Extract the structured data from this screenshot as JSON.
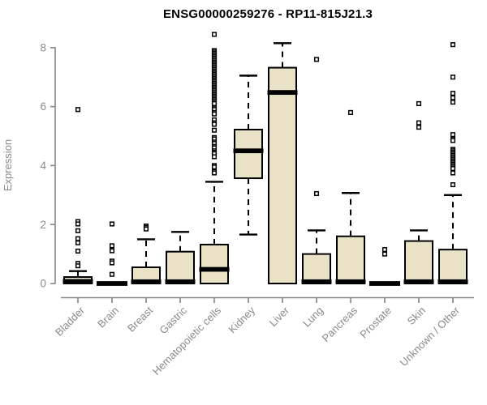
{
  "title": "ENSG00000259276 - RP11-815J21.3",
  "chart_data": {
    "type": "boxplot",
    "title": "ENSG00000259276 - RP11-815J21.3",
    "xlabel": "",
    "ylabel": "Expression",
    "ylim": [
      0,
      8
    ],
    "yticks": [
      0,
      2,
      4,
      6,
      8
    ],
    "grid": false,
    "legend": "none",
    "colors": {
      "box_fill": "#EAE2C6",
      "box_stroke": "#000000",
      "median": "#000000",
      "whisker": "#000000",
      "axis": "#878787",
      "tick_label": "#8A8A8A",
      "title": "#000000",
      "background": "#FFFFFF"
    },
    "categories": [
      "Bladder",
      "Brain",
      "Breast",
      "Gastric",
      "Hematopoietic cells",
      "Kidney",
      "Liver",
      "Lung",
      "Pancreas",
      "Prostate",
      "Skin",
      "Unknown / Other"
    ],
    "series": [
      {
        "label": "Bladder",
        "whisker_low": 0,
        "q1": 0,
        "median": 0.07,
        "q3": 0.22,
        "whisker_high": 0.42,
        "outliers": [
          5.9,
          2.1,
          2.02,
          1.79,
          1.52,
          1.38,
          1.1,
          0.68,
          0.6
        ]
      },
      {
        "label": "Brain",
        "whisker_low": 0,
        "q1": 0,
        "median": 0,
        "q3": 0,
        "whisker_high": 0,
        "outliers": [
          2.02,
          1.28,
          1.11,
          0.76,
          0.7,
          0.31
        ]
      },
      {
        "label": "Breast",
        "whisker_low": 0,
        "q1": 0,
        "median": 0.06,
        "q3": 0.55,
        "whisker_high": 1.5,
        "outliers": [
          1.95,
          1.9,
          1.85
        ]
      },
      {
        "label": "Gastric",
        "whisker_low": 0,
        "q1": 0,
        "median": 0.06,
        "q3": 1.08,
        "whisker_high": 1.75,
        "outliers": []
      },
      {
        "label": "Hematopoietic cells",
        "whisker_low": 0,
        "q1": 0,
        "median": 0.48,
        "q3": 1.32,
        "whisker_high": 3.45,
        "outliers": [
          8.45,
          7.9,
          7.85,
          7.8,
          7.75,
          7.7,
          7.65,
          7.6,
          7.55,
          7.5,
          7.45,
          7.4,
          7.35,
          7.3,
          7.25,
          7.2,
          7.15,
          7.1,
          7.05,
          7.0,
          6.95,
          6.9,
          6.85,
          6.8,
          6.75,
          6.7,
          6.65,
          6.6,
          6.55,
          6.5,
          6.45,
          6.4,
          6.35,
          6.3,
          6.25,
          6.2,
          6.15,
          6.1,
          5.95,
          5.9,
          5.8,
          5.75,
          5.55,
          5.45,
          5.4,
          5.2,
          4.95,
          4.9,
          4.8,
          4.75,
          4.65,
          4.6,
          4.5,
          4.45,
          4.4,
          4.3,
          4.0,
          3.95,
          3.8,
          3.75
        ]
      },
      {
        "label": "Kidney",
        "whisker_low": 1.66,
        "q1": 3.57,
        "median": 4.5,
        "q3": 5.22,
        "whisker_high": 7.05,
        "outliers": []
      },
      {
        "label": "Liver",
        "whisker_low": 0,
        "q1": 0,
        "median": 6.48,
        "q3": 7.32,
        "whisker_high": 8.15,
        "outliers": []
      },
      {
        "label": "Lung",
        "whisker_low": 0,
        "q1": 0,
        "median": 0.06,
        "q3": 1.0,
        "whisker_high": 1.8,
        "outliers": [
          7.6,
          3.05
        ]
      },
      {
        "label": "Pancreas",
        "whisker_low": 0,
        "q1": 0,
        "median": 0.06,
        "q3": 1.6,
        "whisker_high": 3.07,
        "outliers": [
          5.8
        ]
      },
      {
        "label": "Prostate",
        "whisker_low": 0,
        "q1": 0,
        "median": 0,
        "q3": 0,
        "whisker_high": 0,
        "outliers": [
          1.15,
          1.0
        ]
      },
      {
        "label": "Skin",
        "whisker_low": 0,
        "q1": 0,
        "median": 0.06,
        "q3": 1.44,
        "whisker_high": 1.8,
        "outliers": [
          6.1,
          5.45,
          5.3
        ]
      },
      {
        "label": "Unknown / Other",
        "whisker_low": 0,
        "q1": 0,
        "median": 0.06,
        "q3": 1.15,
        "whisker_high": 3.0,
        "outliers": [
          8.1,
          7.0,
          6.45,
          6.3,
          6.15,
          5.05,
          4.9,
          4.85,
          4.55,
          4.5,
          4.45,
          4.4,
          4.35,
          4.3,
          4.25,
          4.2,
          4.15,
          4.1,
          4.05,
          4.0,
          3.95,
          3.9,
          3.75,
          3.35
        ]
      }
    ]
  }
}
